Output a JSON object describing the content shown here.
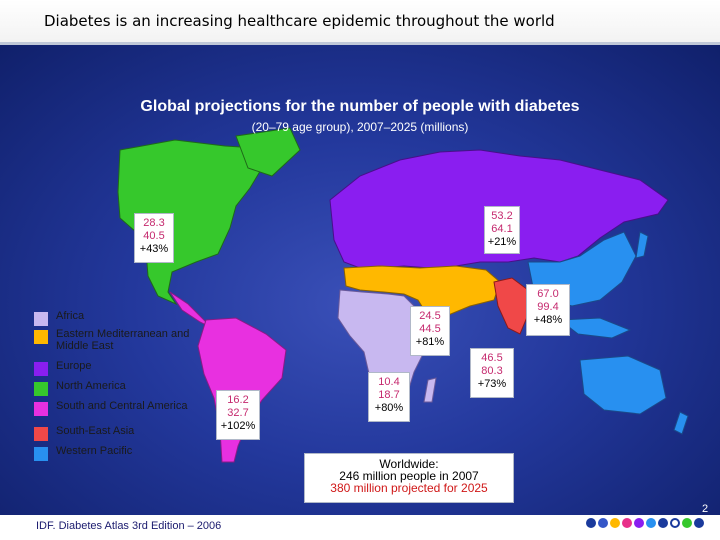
{
  "header": {
    "title": "Diabetes is an increasing healthcare epidemic throughout the world"
  },
  "map": {
    "title": "Global projections for the number of people with diabetes",
    "subtitle": "(20–79 age group), 2007–2025 (millions)"
  },
  "regions": [
    {
      "id": "europe",
      "v2007": "53.2",
      "v2025": "64.1",
      "change": "+21%"
    },
    {
      "id": "north-america",
      "v2007": "28.3",
      "v2025": "40.5",
      "change": "+43%"
    },
    {
      "id": "eastern-mediterranean",
      "v2007": "24.5",
      "v2025": "44.5",
      "change": "+81%"
    },
    {
      "id": "western-pacific",
      "v2007": "67.0",
      "v2025": "99.4",
      "change": "+48%"
    },
    {
      "id": "south-east-asia",
      "v2007": "46.5",
      "v2025": "80.3",
      "change": "+73%"
    },
    {
      "id": "africa",
      "v2007": "10.4",
      "v2025": "18.7",
      "change": "+80%"
    },
    {
      "id": "south-central-america",
      "v2007": "16.2",
      "v2025": "32.7",
      "change": "+102%"
    }
  ],
  "legend": [
    {
      "label": "Africa",
      "color": "#c8b8f0"
    },
    {
      "label": "Eastern Mediterranean and Middle East",
      "color": "#ffb800"
    },
    {
      "label": "Europe",
      "color": "#8a1ef0"
    },
    {
      "label": "North America",
      "color": "#36c82c"
    },
    {
      "label": "South and Central America",
      "color": "#e830e0"
    },
    {
      "label": "South-East Asia",
      "color": "#f04848"
    },
    {
      "label": "Western Pacific",
      "color": "#2890f0"
    }
  ],
  "worldwide": {
    "line1": "Worldwide:",
    "line2": "246 million people in 2007",
    "line3": "380 million projected for 2025"
  },
  "source": "IDF. Diabetes Atlas 3rd Edition – 2006",
  "page_number": "2",
  "nav_dots": [
    "#1a3a9c",
    "#3456c8",
    "#ffb800",
    "#e8308a",
    "#8a1ef0",
    "#2890f0",
    "#1a3a9c",
    "#ffffff",
    "#36c82c",
    "#1a3a9c"
  ]
}
